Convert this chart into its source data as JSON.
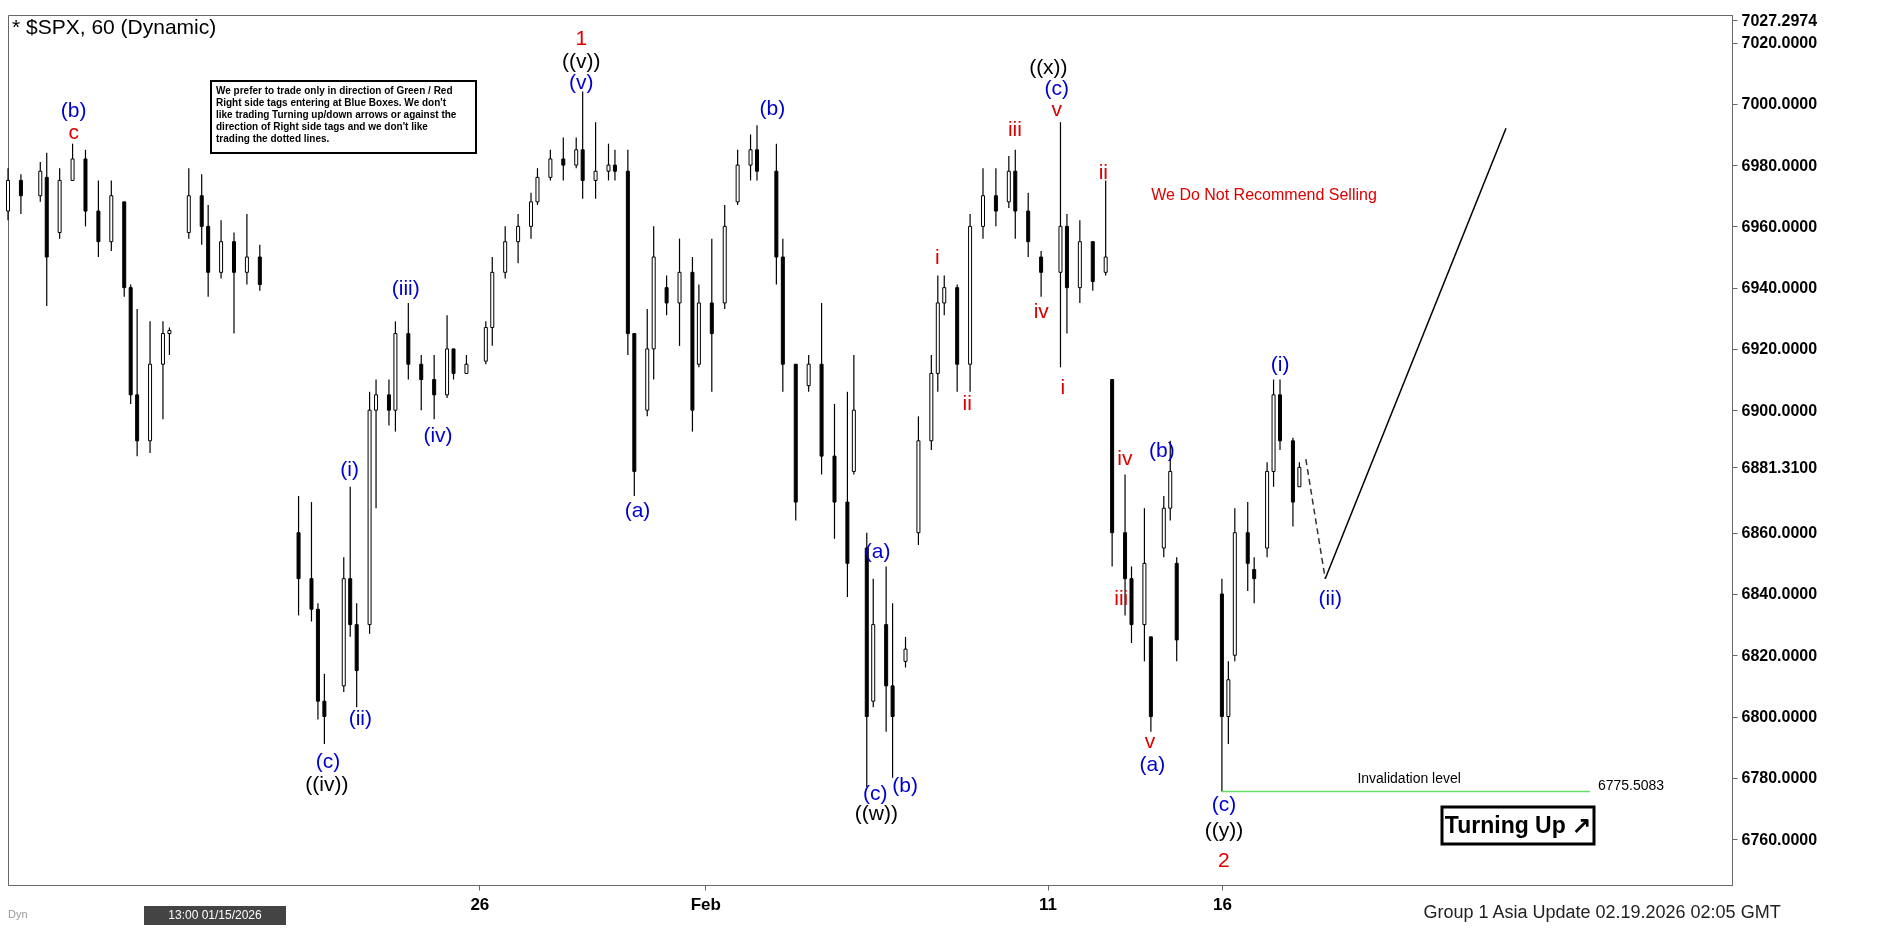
{
  "chart_data": {
    "type": "candlestick",
    "title": "* $SPX, 60 (Dynamic)",
    "categories": [
      null,
      null,
      null,
      null,
      null,
      null,
      null,
      null,
      null,
      null,
      null,
      null,
      null,
      null,
      null,
      null,
      null,
      null,
      null,
      null,
      null,
      null,
      null,
      null,
      null,
      null,
      null,
      null,
      null,
      null,
      null,
      null,
      null,
      null,
      null,
      null,
      null,
      null,
      null,
      null,
      null,
      null,
      null,
      null,
      null,
      null,
      null,
      null,
      null,
      null,
      null,
      null,
      null,
      null,
      null,
      null,
      null,
      null,
      null,
      null,
      null,
      null,
      null,
      null,
      null,
      null,
      null,
      null,
      null,
      null,
      null,
      null,
      null,
      "26",
      null,
      null,
      null,
      null,
      null,
      null,
      null,
      null,
      null,
      null,
      null,
      null,
      null,
      null,
      null,
      null,
      null,
      null,
      null,
      null,
      null,
      null,
      null,
      null,
      null,
      null,
      null,
      null,
      null,
      null,
      null,
      null,
      null,
      null,
      "Feb",
      null,
      null,
      null,
      null,
      null,
      null,
      null,
      null,
      null,
      null,
      null,
      null,
      null,
      null,
      null,
      null,
      null,
      null,
      null,
      null,
      null,
      null,
      null,
      null,
      null,
      null,
      null,
      null,
      null,
      null,
      null,
      null,
      null,
      null,
      null,
      null,
      null,
      null,
      null,
      null,
      null,
      null,
      null,
      null,
      null,
      null,
      null,
      null,
      null,
      null,
      null,
      null,
      "11",
      null,
      null,
      null,
      null,
      null,
      null,
      null,
      null,
      null,
      null,
      null,
      null,
      null,
      null,
      null,
      null,
      null,
      null,
      null,
      null,
      null,
      null,
      null,
      null,
      null,
      null,
      "16",
      null,
      null,
      null,
      null,
      null,
      null,
      null,
      null,
      null,
      null,
      null,
      null,
      null,
      null,
      null,
      null,
      null,
      null,
      null,
      null,
      null,
      null,
      null,
      null,
      null,
      null,
      null,
      null,
      null,
      null,
      null,
      null,
      null,
      null,
      null,
      null,
      null,
      null,
      null,
      null,
      null,
      null,
      null,
      null,
      null,
      null,
      null,
      null,
      null,
      null,
      null,
      null,
      null,
      null,
      null,
      null,
      null,
      null,
      null,
      null,
      null,
      null,
      null,
      null,
      null,
      null,
      null,
      null,
      null,
      null,
      null,
      null,
      null,
      null,
      null,
      null,
      null,
      null,
      null
    ],
    "ylim": [
      6745,
      7029
    ],
    "yticks": [
      {
        "value": 6760,
        "label": "6760.0000"
      },
      {
        "value": 6780,
        "label": "6780.0000"
      },
      {
        "value": 6800,
        "label": "6800.0000"
      },
      {
        "value": 6820,
        "label": "6820.0000"
      },
      {
        "value": 6840,
        "label": "6840.0000"
      },
      {
        "value": 6860,
        "label": "6860.0000"
      },
      {
        "value": 6881.31,
        "label": "6881.3100"
      },
      {
        "value": 6900,
        "label": "6900.0000"
      },
      {
        "value": 6920,
        "label": "6920.0000"
      },
      {
        "value": 6940,
        "label": "6940.0000"
      },
      {
        "value": 6960,
        "label": "6960.0000"
      },
      {
        "value": 6980,
        "label": "6980.0000"
      },
      {
        "value": 7000,
        "label": "7000.0000"
      },
      {
        "value": 7020,
        "label": "7020.0000"
      },
      {
        "value": 7027.2974,
        "label": "7027.2974"
      }
    ],
    "ohlc": [
      [
        6965,
        6979,
        6962,
        6975
      ],
      null,
      [
        6975,
        6977,
        6964,
        6970
      ],
      null,
      null,
      [
        6970,
        6981,
        6968,
        6978
      ],
      [
        6976,
        6984,
        6934,
        6950
      ],
      null,
      [
        6958,
        6979,
        6956,
        6975
      ],
      null,
      [
        6975,
        6987,
        6975,
        6982
      ],
      null,
      [
        6982,
        6985,
        6960,
        6965
      ],
      null,
      [
        6965,
        6975,
        6950,
        6955
      ],
      null,
      [
        6955,
        6975,
        6952,
        6970
      ],
      null,
      [
        6968,
        6968,
        6937,
        6940
      ],
      [
        6940,
        6941,
        6902,
        6905
      ],
      [
        6905,
        6933,
        6885,
        6890
      ],
      null,
      [
        6890,
        6929,
        6886,
        6915
      ],
      null,
      [
        6915,
        6929,
        6897,
        6925
      ],
      [
        6925,
        6927,
        6918,
        6926
      ],
      null,
      null,
      [
        6958,
        6979,
        6956,
        6970
      ],
      null,
      [
        6970,
        6977,
        6954,
        6960
      ],
      [
        6960,
        6967,
        6937,
        6945
      ],
      null,
      [
        6945,
        6962,
        6943,
        6955
      ],
      null,
      [
        6955,
        6958,
        6925,
        6945
      ],
      null,
      [
        6945,
        6964,
        6941,
        6950
      ],
      null,
      [
        6950,
        6954,
        6939,
        6941
      ],
      null,
      null,
      null,
      null,
      null,
      [
        6860,
        6872,
        6833,
        6845
      ],
      null,
      [
        6845,
        6870,
        6831,
        6835
      ],
      [
        6835,
        6837,
        6799,
        6805
      ],
      [
        6805,
        6814,
        6791,
        6800
      ],
      null,
      null,
      [
        6810,
        6852,
        6808,
        6845
      ],
      [
        6845,
        6875,
        6826,
        6830
      ],
      [
        6830,
        6837,
        6803,
        6815
      ],
      null,
      [
        6830,
        6906,
        6827,
        6900
      ],
      [
        6900,
        6910,
        6868,
        6905
      ],
      null,
      [
        6905,
        6910,
        6895,
        6900
      ],
      [
        6900,
        6929,
        6893,
        6925
      ],
      null,
      [
        6925,
        6935,
        6910,
        6915
      ],
      null,
      [
        6915,
        6918,
        6900,
        6910
      ],
      null,
      [
        6910,
        6918,
        6897,
        6905
      ],
      null,
      [
        6905,
        6931,
        6904,
        6920
      ],
      [
        6920,
        6920,
        6910,
        6912
      ],
      null,
      [
        6912,
        6918,
        6912,
        6915
      ],
      null,
      null,
      [
        6916,
        6929,
        6915,
        6927
      ],
      [
        6927,
        6950,
        6921,
        6945
      ],
      null,
      [
        6945,
        6960,
        6943,
        6955
      ],
      null,
      [
        6955,
        6964,
        6948,
        6960
      ],
      null,
      [
        6960,
        6971,
        6956,
        6968
      ],
      [
        6968,
        6979,
        6967,
        6976
      ],
      null,
      [
        6976,
        6985,
        6975,
        6982
      ],
      null,
      [
        6982,
        6989,
        6975,
        6980
      ],
      null,
      [
        6980,
        6989,
        6979,
        6985
      ],
      [
        6985,
        7004,
        6969,
        6975
      ],
      null,
      [
        6975,
        6994,
        6969,
        6978
      ],
      null,
      [
        6978,
        6987,
        6975,
        6980
      ],
      [
        6980,
        6985,
        6975,
        6978
      ],
      null,
      [
        6978,
        6985,
        6918,
        6925
      ],
      [
        6925,
        6925,
        6872,
        6880
      ],
      null,
      [
        6900,
        6933,
        6898,
        6920
      ],
      [
        6920,
        6960,
        6910,
        6950
      ],
      null,
      [
        6940,
        6944,
        6931,
        6935
      ],
      null,
      [
        6935,
        6956,
        6921,
        6945
      ],
      null,
      [
        6945,
        6950,
        6893,
        6900
      ],
      [
        6915,
        6941,
        6914,
        6935
      ],
      null,
      [
        6935,
        6956,
        6906,
        6925
      ],
      null,
      [
        6935,
        6967,
        6933,
        6960
      ],
      null,
      [
        6968,
        6985,
        6967,
        6980
      ],
      null,
      [
        6980,
        6990,
        6975,
        6985
      ],
      [
        6985,
        6993,
        6975,
        6978
      ],
      null,
      null,
      [
        6978,
        6987,
        6941,
        6950
      ],
      [
        6950,
        6956,
        6906,
        6915
      ],
      null,
      [
        6915,
        6915,
        6864,
        6870
      ],
      null,
      [
        6908,
        6918,
        6906,
        6915
      ],
      null,
      [
        6915,
        6935,
        6879,
        6885
      ],
      null,
      [
        6885,
        6902,
        6858,
        6870
      ],
      null,
      [
        6870,
        6906,
        6839,
        6850
      ],
      [
        6880,
        6918,
        6879,
        6900
      ],
      null,
      [
        6855,
        6860,
        6777,
        6800
      ],
      [
        6805,
        6845,
        6803,
        6830
      ],
      null,
      [
        6830,
        6849,
        6795,
        6810
      ],
      [
        6810,
        6837,
        6780,
        6800
      ],
      null,
      [
        6818,
        6826,
        6816,
        6822
      ],
      null,
      [
        6860,
        6898,
        6856,
        6890
      ],
      null,
      [
        6890,
        6918,
        6887,
        6912
      ],
      [
        6912,
        6944,
        6906,
        6935
      ],
      [
        6935,
        6944,
        6931,
        6940
      ],
      null,
      [
        6940,
        6941,
        6906,
        6915
      ],
      null,
      [
        6915,
        6964,
        6906,
        6960
      ],
      null,
      [
        6960,
        6979,
        6956,
        6970
      ],
      null,
      [
        6970,
        6979,
        6960,
        6965
      ],
      null,
      [
        6968,
        6983,
        6966,
        6978
      ],
      [
        6978,
        6985,
        6956,
        6965
      ],
      null,
      [
        6965,
        6971,
        6950,
        6955
      ],
      null,
      [
        6950,
        6952,
        6937,
        6945
      ],
      null,
      null,
      [
        6945,
        6994,
        6914,
        6960
      ],
      [
        6960,
        6964,
        6925,
        6940
      ],
      null,
      [
        6940,
        6962,
        6935,
        6955
      ],
      null,
      [
        6955,
        6955,
        6939,
        6942
      ],
      null,
      [
        6945,
        6975,
        6944,
        6950
      ],
      [
        6910,
        6910,
        6849,
        6860
      ],
      null,
      [
        6860,
        6879,
        6833,
        6845
      ],
      [
        6845,
        6849,
        6824,
        6830
      ],
      null,
      [
        6830,
        6868,
        6818,
        6850
      ],
      [
        6826,
        6826,
        6795,
        6800
      ],
      null,
      [
        6855,
        6872,
        6852,
        6868
      ],
      [
        6868,
        6890,
        6864,
        6880
      ],
      [
        6850,
        6852,
        6818,
        6825
      ],
      null,
      null,
      null,
      null,
      null,
      null,
      [
        6840,
        6845,
        6775.5,
        6800
      ],
      [
        6800,
        6818,
        6791,
        6812
      ],
      [
        6820,
        6868,
        6818,
        6860
      ],
      null,
      [
        6860,
        6870,
        6841,
        6850
      ],
      [
        6848,
        6852,
        6837,
        6845
      ],
      null,
      [
        6855,
        6883,
        6852,
        6880
      ],
      [
        6880,
        6910,
        6875,
        6905
      ],
      [
        6905,
        6910,
        6887,
        6890
      ],
      null,
      [
        6890,
        6891,
        6862,
        6870
      ],
      [
        6875,
        6883,
        6875,
        6881.31
      ],
      null,
      null,
      null,
      null,
      null,
      null,
      null,
      null,
      null,
      null,
      null,
      null,
      null,
      null,
      null,
      null,
      null,
      null,
      null,
      null,
      null,
      null,
      null,
      null,
      null,
      null,
      null,
      null,
      null,
      null,
      null,
      null,
      null,
      null,
      null,
      null,
      null,
      null,
      null,
      null,
      null,
      null,
      null,
      null,
      null,
      null,
      null,
      null,
      null,
      null,
      null,
      null,
      null,
      null,
      null,
      null,
      null,
      null,
      null,
      null,
      null,
      null,
      null,
      null,
      null,
      null,
      null
    ],
    "series": [
      {
        "name": "Invalidation level",
        "type": "line",
        "color": "#66dd66",
        "line_style": "solid",
        "values": [
          null,
          null,
          null,
          null,
          null,
          null,
          null,
          null,
          null,
          null,
          null,
          null,
          null,
          null,
          null,
          null,
          null,
          null,
          null,
          null,
          null,
          null,
          null,
          null,
          null,
          null,
          null,
          null,
          null,
          null,
          null,
          null,
          null,
          null,
          null,
          null,
          null,
          null,
          null,
          null,
          null,
          null,
          null,
          null,
          null,
          null,
          null,
          null,
          null,
          null,
          null,
          null,
          null,
          null,
          null,
          null,
          null,
          null,
          null,
          null,
          null,
          null,
          null,
          null,
          null,
          null,
          null,
          null,
          null,
          null,
          null,
          null,
          null,
          null,
          null,
          null,
          null,
          null,
          null,
          null,
          null,
          null,
          null,
          null,
          null,
          null,
          null,
          null,
          null,
          null,
          null,
          null,
          null,
          null,
          null,
          null,
          null,
          null,
          null,
          null,
          null,
          null,
          null,
          null,
          null,
          null,
          null,
          null,
          null,
          null,
          null,
          null,
          null,
          null,
          null,
          null,
          null,
          null,
          null,
          null,
          null,
          null,
          null,
          null,
          null,
          null,
          null,
          null,
          null,
          null,
          null,
          null,
          null,
          null,
          null,
          null,
          null,
          null,
          null,
          null,
          null,
          null,
          null,
          null,
          null,
          null,
          null,
          null,
          null,
          null,
          null,
          null,
          null,
          null,
          null,
          null,
          null,
          null,
          null,
          null,
          null,
          null,
          null,
          null,
          null,
          null,
          null,
          null,
          null,
          null,
          null,
          null,
          null,
          null,
          null,
          null,
          null,
          null,
          null,
          null,
          null,
          null,
          null,
          null,
          null,
          null,
          null,
          null,
          6775.5083,
          null,
          null,
          null,
          null,
          null,
          null,
          null,
          null,
          null,
          null,
          null,
          null,
          null,
          null,
          null,
          null,
          null,
          null,
          null,
          null,
          null,
          null,
          null,
          null,
          null,
          null,
          null,
          null,
          null,
          null,
          null,
          null,
          null,
          null,
          null,
          null,
          null,
          null,
          null,
          null,
          null,
          null,
          null,
          null,
          null,
          null,
          null,
          null,
          null,
          null,
          null,
          null,
          null,
          null,
          null,
          null,
          6775.5083,
          null,
          null,
          null,
          null,
          null,
          null,
          null,
          null,
          null,
          null,
          null,
          null,
          null,
          null,
          null,
          null,
          null,
          null,
          null,
          null,
          null,
          null
        ],
        "value_labels": [
          null,
          null,
          null,
          null,
          null,
          null,
          null,
          null,
          null,
          null,
          null,
          null,
          null,
          null,
          null,
          null,
          null,
          null,
          null,
          null,
          null,
          null,
          null,
          null,
          null,
          null,
          null,
          null,
          null,
          null,
          null,
          null,
          null,
          null,
          null,
          null,
          null,
          null,
          null,
          null,
          null,
          null,
          null,
          null,
          null,
          null,
          null,
          null,
          null,
          null,
          null,
          null,
          null,
          null,
          null,
          null,
          null,
          null,
          null,
          null,
          null,
          null,
          null,
          null,
          null,
          null,
          null,
          null,
          null,
          null,
          null,
          null,
          null,
          null,
          null,
          null,
          null,
          null,
          null,
          null,
          null,
          null,
          null,
          null,
          null,
          null,
          null,
          null,
          null,
          null,
          null,
          null,
          null,
          null,
          null,
          null,
          null,
          null,
          null,
          null,
          null,
          null,
          null,
          null,
          null,
          null,
          null,
          null,
          null,
          null,
          null,
          null,
          null,
          null,
          null,
          null,
          null,
          null,
          null,
          null,
          null,
          null,
          null,
          null,
          null,
          null,
          null,
          null,
          null,
          null,
          null,
          null,
          null,
          null,
          null,
          null,
          null,
          null,
          null,
          null,
          null,
          null,
          null,
          null,
          null,
          null,
          null,
          null,
          null,
          null,
          null,
          null,
          null,
          null,
          null,
          null,
          null,
          null,
          null,
          null,
          null,
          null,
          null,
          null,
          null,
          null,
          null,
          null,
          null,
          null,
          null,
          null,
          null,
          null,
          null,
          null,
          null,
          null,
          null,
          null,
          null,
          null,
          null,
          null,
          null,
          null,
          null,
          null,
          null,
          null,
          null,
          null,
          null,
          null,
          null,
          null,
          null,
          null,
          null,
          null,
          null,
          null,
          null,
          null,
          null,
          null,
          null,
          null,
          null,
          null,
          null,
          null,
          null,
          null,
          null,
          null,
          null,
          null,
          null,
          null,
          null,
          null,
          null,
          null,
          null,
          null,
          null,
          null,
          null,
          null,
          null,
          null,
          null,
          null,
          null,
          null,
          null,
          null,
          null,
          null,
          null,
          null,
          null,
          null,
          null,
          "6775.5083",
          null,
          null,
          null,
          null,
          null,
          null,
          null,
          null,
          null,
          null,
          null,
          null,
          null,
          null,
          null,
          null,
          null,
          null,
          null,
          null,
          null,
          null
        ]
      },
      {
        "type": "line",
        "color": "#333333",
        "line_style": "dashed",
        "values": [
          null,
          null,
          null,
          null,
          null,
          null,
          null,
          null,
          null,
          null,
          null,
          null,
          null,
          null,
          null,
          null,
          null,
          null,
          null,
          null,
          null,
          null,
          null,
          null,
          null,
          null,
          null,
          null,
          null,
          null,
          null,
          null,
          null,
          null,
          null,
          null,
          null,
          null,
          null,
          null,
          null,
          null,
          null,
          null,
          null,
          null,
          null,
          null,
          null,
          null,
          null,
          null,
          null,
          null,
          null,
          null,
          null,
          null,
          null,
          null,
          null,
          null,
          null,
          null,
          null,
          null,
          null,
          null,
          null,
          null,
          null,
          null,
          null,
          null,
          null,
          null,
          null,
          null,
          null,
          null,
          null,
          null,
          null,
          null,
          null,
          null,
          null,
          null,
          null,
          null,
          null,
          null,
          null,
          null,
          null,
          null,
          null,
          null,
          null,
          null,
          null,
          null,
          null,
          null,
          null,
          null,
          null,
          null,
          null,
          null,
          null,
          null,
          null,
          null,
          null,
          null,
          null,
          null,
          null,
          null,
          null,
          null,
          null,
          null,
          null,
          null,
          null,
          null,
          null,
          null,
          null,
          null,
          null,
          null,
          null,
          null,
          null,
          null,
          null,
          null,
          null,
          null,
          null,
          null,
          null,
          null,
          null,
          null,
          null,
          null,
          null,
          null,
          null,
          null,
          null,
          null,
          null,
          null,
          null,
          null,
          null,
          null,
          null,
          null,
          null,
          null,
          null,
          null,
          null,
          null,
          null,
          null,
          null,
          null,
          null,
          null,
          null,
          null,
          null,
          null,
          null,
          null,
          null,
          null,
          null,
          null,
          null,
          null,
          null,
          null,
          null,
          null,
          null,
          null,
          null,
          null,
          null,
          null,
          null,
          null,
          null,
          6884,
          null,
          null,
          6845,
          null,
          null,
          null,
          null,
          null,
          null,
          null,
          null,
          null,
          null,
          null,
          null,
          null,
          null,
          null,
          null,
          null,
          null,
          null,
          null,
          null,
          null,
          null,
          null,
          null,
          null,
          null,
          null,
          null,
          null,
          null,
          null,
          null,
          null,
          null,
          null,
          null,
          null,
          null,
          null,
          null,
          null,
          null,
          null,
          null,
          null,
          null,
          null,
          null,
          null,
          null,
          null,
          null,
          null,
          null,
          null,
          null,
          null,
          null,
          null,
          null,
          null,
          null
        ]
      },
      {
        "type": "line",
        "color": "#000000",
        "line_style": "solid",
        "values": [
          null,
          null,
          null,
          null,
          null,
          null,
          null,
          null,
          null,
          null,
          null,
          null,
          null,
          null,
          null,
          null,
          null,
          null,
          null,
          null,
          null,
          null,
          null,
          null,
          null,
          null,
          null,
          null,
          null,
          null,
          null,
          null,
          null,
          null,
          null,
          null,
          null,
          null,
          null,
          null,
          null,
          null,
          null,
          null,
          null,
          null,
          null,
          null,
          null,
          null,
          null,
          null,
          null,
          null,
          null,
          null,
          null,
          null,
          null,
          null,
          null,
          null,
          null,
          null,
          null,
          null,
          null,
          null,
          null,
          null,
          null,
          null,
          null,
          null,
          null,
          null,
          null,
          null,
          null,
          null,
          null,
          null,
          null,
          null,
          null,
          null,
          null,
          null,
          null,
          null,
          null,
          null,
          null,
          null,
          null,
          null,
          null,
          null,
          null,
          null,
          null,
          null,
          null,
          null,
          null,
          null,
          null,
          null,
          null,
          null,
          null,
          null,
          null,
          null,
          null,
          null,
          null,
          null,
          null,
          null,
          null,
          null,
          null,
          null,
          null,
          null,
          null,
          null,
          null,
          null,
          null,
          null,
          null,
          null,
          null,
          null,
          null,
          null,
          null,
          null,
          null,
          null,
          null,
          null,
          null,
          null,
          null,
          null,
          null,
          null,
          null,
          null,
          null,
          null,
          null,
          null,
          null,
          null,
          null,
          null,
          null,
          null,
          null,
          null,
          null,
          null,
          null,
          null,
          null,
          null,
          null,
          null,
          null,
          null,
          null,
          null,
          null,
          null,
          null,
          null,
          null,
          null,
          null,
          null,
          null,
          null,
          null,
          null,
          null,
          null,
          null,
          null,
          null,
          null,
          null,
          null,
          null,
          null,
          null,
          null,
          null,
          null,
          null,
          null,
          6845,
          null,
          null,
          null,
          null,
          null,
          null,
          null,
          null,
          null,
          null,
          null,
          null,
          null,
          null,
          null,
          null,
          null,
          null,
          null,
          null,
          null,
          null,
          null,
          null,
          null,
          null,
          null,
          6992,
          null,
          null,
          null,
          null,
          null,
          null,
          null,
          null,
          null,
          null,
          null,
          null,
          null,
          null,
          null,
          null,
          null,
          null,
          null,
          null,
          null,
          null,
          null,
          null,
          null,
          null,
          null,
          null,
          null,
          null,
          null,
          null,
          null,
          null,
          null
        ]
      }
    ],
    "annotations": [
      "We prefer to trade only in direction of Green / Red Right side tags entering at Blue Boxes. We don't like trading Turning up/down arrows or against the direction of Right side tags and we don't like trading the dotted lines.",
      "We Do Not Recommend Selling",
      "Turning Up ↗",
      "Group 1 Asia Update 02.19.2026 02:05 GMT",
      "Dyn",
      "13:00 01/15/2026",
      "(b)",
      "c",
      "1",
      "((v))",
      "(v)",
      "(iii)",
      "(iv)",
      "(i)",
      "(ii)",
      "(c)",
      "((iv))",
      "(a)",
      "(b)",
      "(a)",
      "(c)",
      "(b)",
      "((w))",
      "i",
      "ii",
      "iii",
      "iv",
      "((x))",
      "(c)",
      "v",
      "i",
      "ii",
      "iv",
      "iii",
      "(b)",
      "v",
      "(a)",
      "(c)",
      "((y))",
      "2",
      "(i)",
      "(ii)"
    ]
  }
}
